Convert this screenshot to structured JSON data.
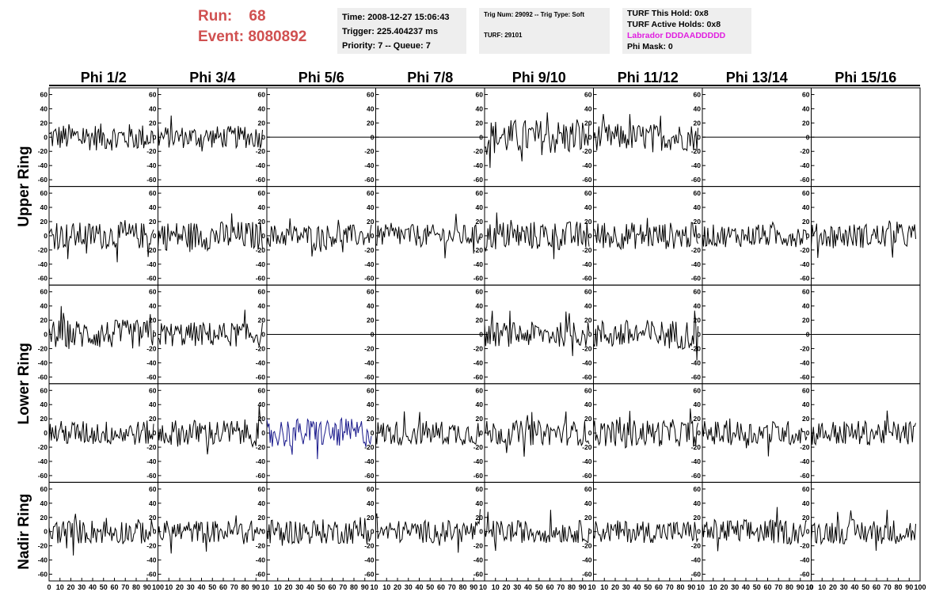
{
  "header": {
    "run_label": "Run:",
    "run_value": "68",
    "event_label": "Event:",
    "event_value": "8080892",
    "time": "Time: 2008-12-27 15:06:43",
    "trigger": "Trigger: 225.404237 ms",
    "priority": "Priority: 7 -- Queue: 7",
    "trig_num": "Trig Num: 29092 -- Trig Type: Soft",
    "turf": "TURF: 29101",
    "turf_this_hold": "TURF This Hold: 0x8",
    "turf_active_holds": "TURF Active Holds: 0x8",
    "labrador": "Labrador DDDAADDDDD",
    "phi_mask": "Phi Mask: 0"
  },
  "colors": {
    "run_text": "#d05050",
    "labrador_text": "#e020e0",
    "info_box_bg": "#eeeeee",
    "trace": "#000000",
    "highlight_trace": "#1a1a8c"
  },
  "chart_data": {
    "type": "line",
    "columns": [
      "Phi 1/2",
      "Phi 3/4",
      "Phi 5/6",
      "Phi 7/8",
      "Phi 9/10",
      "Phi 11/12",
      "Phi 13/14",
      "Phi 15/16"
    ],
    "rings": [
      "Upper Ring",
      "Lower Ring",
      "Nadir Ring"
    ],
    "rows_per_ring": [
      2,
      2,
      1
    ],
    "xlim": [
      0,
      100
    ],
    "ylim": [
      -65,
      65
    ],
    "x_ticks": [
      0,
      10,
      20,
      30,
      40,
      50,
      60,
      70,
      80,
      90,
      100
    ],
    "y_ticks": [
      -60,
      -40,
      -20,
      0,
      20,
      40,
      60
    ],
    "x_tick_labels": [
      "0",
      "10",
      "20",
      "30",
      "40",
      "50",
      "60",
      "70",
      "80",
      "90",
      "100"
    ],
    "x_tick_labels_other": [
      "10",
      "20",
      "30",
      "40",
      "50",
      "60",
      "70",
      "80",
      "90",
      "10"
    ],
    "x_tick_labels_last": [
      "0",
      "10",
      "20",
      "30",
      "40",
      "50",
      "60",
      "70",
      "80",
      "90",
      "100"
    ],
    "y_tick_labels": [
      "-60",
      "-40",
      "-20",
      "0",
      "20",
      "40",
      "60"
    ],
    "samples": 96,
    "flat_panels": [
      [
        0,
        2
      ],
      [
        0,
        3
      ],
      [
        0,
        6
      ],
      [
        0,
        7
      ],
      [
        2,
        2
      ],
      [
        2,
        3
      ],
      [
        2,
        6
      ],
      [
        2,
        7
      ]
    ],
    "highlight_panel": [
      3,
      2
    ],
    "panel_amplitude": [
      [
        12,
        10,
        0,
        0,
        16,
        12,
        0,
        0
      ],
      [
        12,
        13,
        10,
        10,
        13,
        12,
        10,
        11
      ],
      [
        13,
        11,
        0,
        0,
        11,
        13,
        0,
        0
      ],
      [
        11,
        12,
        13,
        11,
        11,
        12,
        11,
        11
      ],
      [
        11,
        10,
        11,
        10,
        10,
        10,
        11,
        11
      ]
    ]
  }
}
